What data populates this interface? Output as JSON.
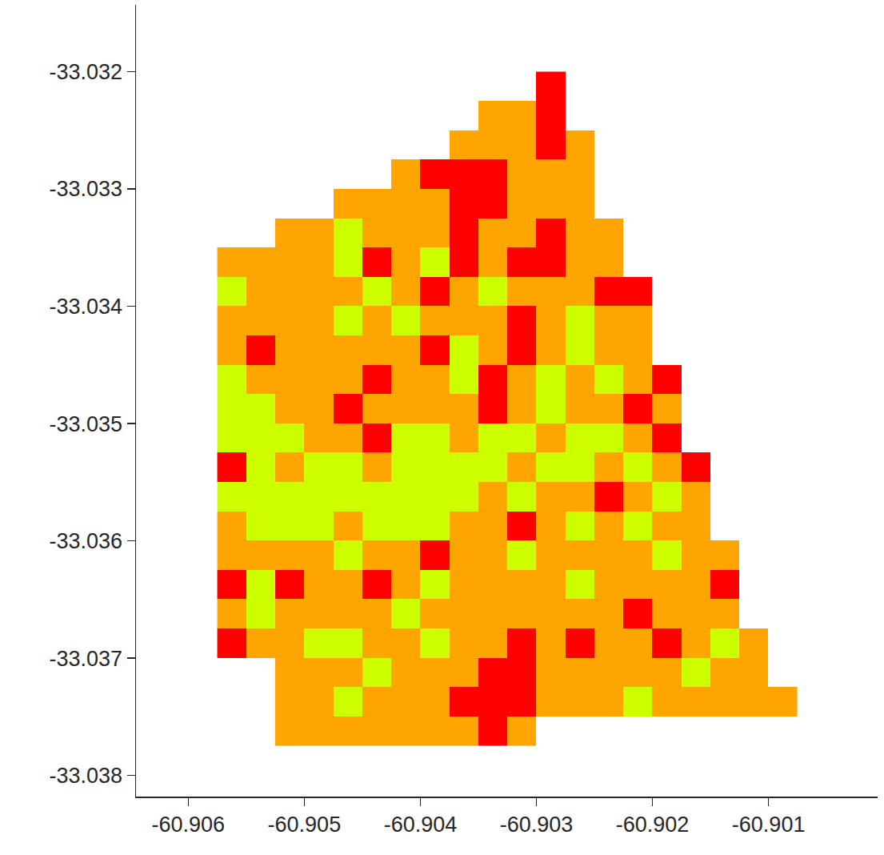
{
  "chart_data": {
    "type": "heatmap",
    "x": [
      -60.905625,
      -60.905375,
      -60.905125,
      -60.904875,
      -60.904625,
      -60.904375,
      -60.904125,
      -60.903875,
      -60.903625,
      -60.903375,
      -60.903125,
      -60.902875,
      -60.902625,
      -60.902375,
      -60.902125,
      -60.901875,
      -60.901625,
      -60.901375,
      -60.901125,
      -60.900875
    ],
    "y": [
      -33.032125,
      -33.032375,
      -33.032625,
      -33.032875,
      -33.033125,
      -33.033375,
      -33.033625,
      -33.033875,
      -33.034125,
      -33.034375,
      -33.034625,
      -33.034875,
      -33.035125,
      -33.035375,
      -33.035625,
      -33.035875,
      -33.036125,
      -33.036375,
      -33.036625,
      -33.036875,
      -33.037125,
      -33.037375,
      -33.037625
    ],
    "z": [
      [
        null,
        null,
        null,
        null,
        null,
        null,
        null,
        null,
        null,
        null,
        null,
        1,
        null,
        null,
        null,
        null,
        null,
        null,
        null,
        null
      ],
      [
        null,
        null,
        null,
        null,
        null,
        null,
        null,
        null,
        null,
        2,
        2,
        1,
        null,
        null,
        null,
        null,
        null,
        null,
        null,
        null
      ],
      [
        null,
        null,
        null,
        null,
        null,
        null,
        null,
        null,
        2,
        2,
        2,
        1,
        2,
        null,
        null,
        null,
        null,
        null,
        null,
        null
      ],
      [
        null,
        null,
        null,
        null,
        null,
        null,
        2,
        1,
        1,
        1,
        2,
        2,
        2,
        null,
        null,
        null,
        null,
        null,
        null,
        null
      ],
      [
        null,
        null,
        null,
        null,
        2,
        2,
        2,
        2,
        1,
        1,
        2,
        2,
        2,
        null,
        null,
        null,
        null,
        null,
        null,
        null
      ],
      [
        null,
        null,
        2,
        2,
        3,
        2,
        2,
        2,
        1,
        2,
        2,
        1,
        2,
        2,
        null,
        null,
        null,
        null,
        null,
        null
      ],
      [
        2,
        2,
        2,
        2,
        3,
        1,
        2,
        3,
        1,
        2,
        1,
        1,
        2,
        2,
        null,
        null,
        null,
        null,
        null,
        null
      ],
      [
        3,
        2,
        2,
        2,
        2,
        3,
        2,
        1,
        2,
        3,
        2,
        2,
        2,
        1,
        1,
        null,
        null,
        null,
        null,
        null
      ],
      [
        2,
        2,
        2,
        2,
        3,
        2,
        3,
        2,
        2,
        2,
        1,
        2,
        3,
        2,
        2,
        null,
        null,
        null,
        null,
        null
      ],
      [
        2,
        1,
        2,
        2,
        2,
        2,
        2,
        1,
        3,
        2,
        1,
        2,
        3,
        2,
        2,
        null,
        null,
        null,
        null,
        null
      ],
      [
        3,
        2,
        2,
        2,
        2,
        1,
        2,
        2,
        3,
        1,
        2,
        3,
        2,
        3,
        2,
        1,
        null,
        null,
        null,
        null
      ],
      [
        3,
        3,
        2,
        2,
        1,
        2,
        2,
        2,
        2,
        1,
        2,
        3,
        2,
        2,
        1,
        2,
        null,
        null,
        null,
        null
      ],
      [
        3,
        3,
        3,
        2,
        2,
        1,
        3,
        3,
        2,
        3,
        3,
        2,
        3,
        3,
        2,
        1,
        null,
        null,
        null,
        null
      ],
      [
        1,
        3,
        2,
        3,
        3,
        2,
        3,
        3,
        3,
        3,
        2,
        3,
        3,
        2,
        3,
        2,
        1,
        null,
        null,
        null
      ],
      [
        3,
        3,
        3,
        3,
        3,
        3,
        3,
        3,
        3,
        2,
        3,
        2,
        2,
        1,
        2,
        3,
        2,
        null,
        null,
        null
      ],
      [
        2,
        3,
        3,
        3,
        2,
        3,
        3,
        3,
        2,
        2,
        1,
        2,
        3,
        2,
        3,
        2,
        2,
        null,
        null,
        null
      ],
      [
        2,
        2,
        2,
        2,
        3,
        2,
        2,
        1,
        2,
        2,
        3,
        2,
        2,
        2,
        2,
        3,
        2,
        2,
        null,
        null
      ],
      [
        1,
        3,
        1,
        2,
        2,
        1,
        2,
        3,
        2,
        2,
        2,
        2,
        3,
        2,
        2,
        2,
        2,
        1,
        null,
        null
      ],
      [
        2,
        3,
        2,
        2,
        2,
        2,
        3,
        2,
        2,
        2,
        2,
        2,
        2,
        2,
        1,
        2,
        2,
        2,
        null,
        null
      ],
      [
        1,
        2,
        2,
        3,
        3,
        2,
        2,
        3,
        2,
        2,
        1,
        2,
        1,
        2,
        2,
        1,
        2,
        3,
        2,
        null
      ],
      [
        null,
        null,
        2,
        2,
        2,
        3,
        2,
        2,
        2,
        1,
        1,
        2,
        2,
        2,
        2,
        2,
        3,
        2,
        2,
        null
      ],
      [
        null,
        null,
        2,
        2,
        3,
        2,
        2,
        2,
        1,
        1,
        1,
        2,
        2,
        2,
        3,
        2,
        2,
        2,
        2,
        2
      ],
      [
        null,
        null,
        2,
        2,
        2,
        2,
        2,
        2,
        2,
        1,
        2,
        null,
        null,
        null,
        null,
        null,
        null,
        null,
        null,
        null
      ]
    ],
    "zlim": [
      1,
      3
    ],
    "colors": [
      "#ff0000",
      "#ffa500",
      "#ccff00"
    ],
    "xlim": [
      -60.90645,
      -60.90006
    ],
    "ylim": [
      -33.03818,
      -33.03143
    ],
    "xticks": [
      -60.906,
      -60.905,
      -60.904,
      -60.903,
      -60.902,
      -60.901
    ],
    "yticks": [
      -33.032,
      -33.033,
      -33.034,
      -33.035,
      -33.036,
      -33.037,
      -33.038
    ],
    "grid": false
  }
}
